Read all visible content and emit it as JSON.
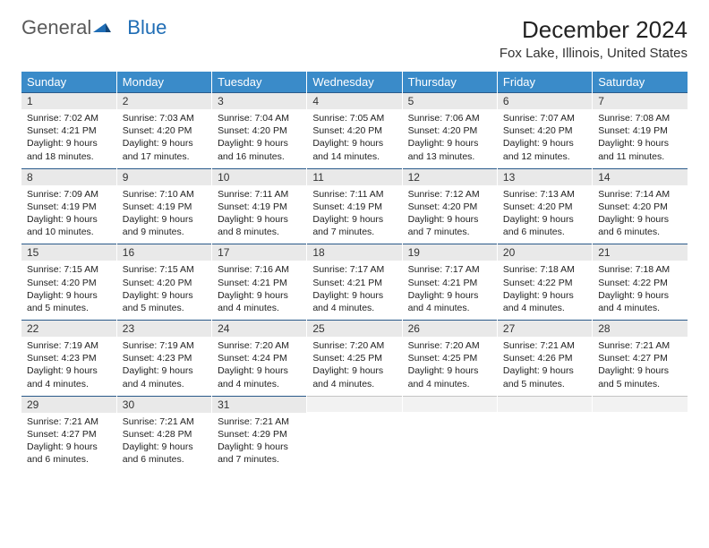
{
  "brand": {
    "part1": "General",
    "part2": "Blue"
  },
  "title": "December 2024",
  "location": "Fox Lake, Illinois, United States",
  "colors": {
    "header_bg": "#3a8bc9",
    "header_text": "#ffffff",
    "daynum_bg": "#e9e9e9",
    "daynum_border": "#2a5a8a",
    "empty_bg": "#f2f2f2",
    "logo_gray": "#5a5a5a",
    "logo_blue": "#1f6db5"
  },
  "day_names": [
    "Sunday",
    "Monday",
    "Tuesday",
    "Wednesday",
    "Thursday",
    "Friday",
    "Saturday"
  ],
  "weeks": [
    [
      {
        "n": "1",
        "sr": "7:02 AM",
        "ss": "4:21 PM",
        "dh": "9",
        "dm": "18"
      },
      {
        "n": "2",
        "sr": "7:03 AM",
        "ss": "4:20 PM",
        "dh": "9",
        "dm": "17"
      },
      {
        "n": "3",
        "sr": "7:04 AM",
        "ss": "4:20 PM",
        "dh": "9",
        "dm": "16"
      },
      {
        "n": "4",
        "sr": "7:05 AM",
        "ss": "4:20 PM",
        "dh": "9",
        "dm": "14"
      },
      {
        "n": "5",
        "sr": "7:06 AM",
        "ss": "4:20 PM",
        "dh": "9",
        "dm": "13"
      },
      {
        "n": "6",
        "sr": "7:07 AM",
        "ss": "4:20 PM",
        "dh": "9",
        "dm": "12"
      },
      {
        "n": "7",
        "sr": "7:08 AM",
        "ss": "4:19 PM",
        "dh": "9",
        "dm": "11"
      }
    ],
    [
      {
        "n": "8",
        "sr": "7:09 AM",
        "ss": "4:19 PM",
        "dh": "9",
        "dm": "10"
      },
      {
        "n": "9",
        "sr": "7:10 AM",
        "ss": "4:19 PM",
        "dh": "9",
        "dm": "9"
      },
      {
        "n": "10",
        "sr": "7:11 AM",
        "ss": "4:19 PM",
        "dh": "9",
        "dm": "8"
      },
      {
        "n": "11",
        "sr": "7:11 AM",
        "ss": "4:19 PM",
        "dh": "9",
        "dm": "7"
      },
      {
        "n": "12",
        "sr": "7:12 AM",
        "ss": "4:20 PM",
        "dh": "9",
        "dm": "7"
      },
      {
        "n": "13",
        "sr": "7:13 AM",
        "ss": "4:20 PM",
        "dh": "9",
        "dm": "6"
      },
      {
        "n": "14",
        "sr": "7:14 AM",
        "ss": "4:20 PM",
        "dh": "9",
        "dm": "6"
      }
    ],
    [
      {
        "n": "15",
        "sr": "7:15 AM",
        "ss": "4:20 PM",
        "dh": "9",
        "dm": "5"
      },
      {
        "n": "16",
        "sr": "7:15 AM",
        "ss": "4:20 PM",
        "dh": "9",
        "dm": "5"
      },
      {
        "n": "17",
        "sr": "7:16 AM",
        "ss": "4:21 PM",
        "dh": "9",
        "dm": "4"
      },
      {
        "n": "18",
        "sr": "7:17 AM",
        "ss": "4:21 PM",
        "dh": "9",
        "dm": "4"
      },
      {
        "n": "19",
        "sr": "7:17 AM",
        "ss": "4:21 PM",
        "dh": "9",
        "dm": "4"
      },
      {
        "n": "20",
        "sr": "7:18 AM",
        "ss": "4:22 PM",
        "dh": "9",
        "dm": "4"
      },
      {
        "n": "21",
        "sr": "7:18 AM",
        "ss": "4:22 PM",
        "dh": "9",
        "dm": "4"
      }
    ],
    [
      {
        "n": "22",
        "sr": "7:19 AM",
        "ss": "4:23 PM",
        "dh": "9",
        "dm": "4"
      },
      {
        "n": "23",
        "sr": "7:19 AM",
        "ss": "4:23 PM",
        "dh": "9",
        "dm": "4"
      },
      {
        "n": "24",
        "sr": "7:20 AM",
        "ss": "4:24 PM",
        "dh": "9",
        "dm": "4"
      },
      {
        "n": "25",
        "sr": "7:20 AM",
        "ss": "4:25 PM",
        "dh": "9",
        "dm": "4"
      },
      {
        "n": "26",
        "sr": "7:20 AM",
        "ss": "4:25 PM",
        "dh": "9",
        "dm": "4"
      },
      {
        "n": "27",
        "sr": "7:21 AM",
        "ss": "4:26 PM",
        "dh": "9",
        "dm": "5"
      },
      {
        "n": "28",
        "sr": "7:21 AM",
        "ss": "4:27 PM",
        "dh": "9",
        "dm": "5"
      }
    ],
    [
      {
        "n": "29",
        "sr": "7:21 AM",
        "ss": "4:27 PM",
        "dh": "9",
        "dm": "6"
      },
      {
        "n": "30",
        "sr": "7:21 AM",
        "ss": "4:28 PM",
        "dh": "9",
        "dm": "6"
      },
      {
        "n": "31",
        "sr": "7:21 AM",
        "ss": "4:29 PM",
        "dh": "9",
        "dm": "7"
      },
      null,
      null,
      null,
      null
    ]
  ],
  "labels": {
    "sunrise": "Sunrise:",
    "sunset": "Sunset:",
    "daylight": "Daylight:",
    "hours": "hours",
    "and": "and",
    "minutes": "minutes."
  }
}
